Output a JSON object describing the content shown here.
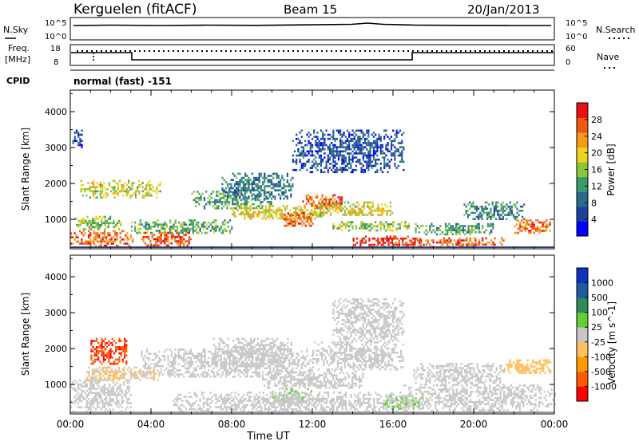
{
  "header": {
    "station": "Kerguelen (fitACF)",
    "beam": "Beam 15",
    "date": "20/Jan/2013"
  },
  "panels": {
    "nsky_label": "N.Sky",
    "nsky_ticks": [
      "10^5",
      "10^0"
    ],
    "nsearch_label": "N.Search",
    "nsearch_ticks": [
      "10^5",
      "10^0"
    ],
    "freq_label_1": "Freq.",
    "freq_label_2": "[MHz]",
    "freq_ticks": [
      "18",
      "8"
    ],
    "nave_label": "Nave",
    "nave_ticks": [
      "60",
      "0"
    ],
    "cpid_label": "CPID",
    "cpid_value": "normal (fast) -151"
  },
  "chart_data": [
    {
      "type": "heatmap",
      "title": "",
      "xlabel": "Time UT",
      "ylabel": "Slant Range [km]",
      "x_ticks": [
        "00:00",
        "04:00",
        "08:00",
        "12:00",
        "16:00",
        "20:00",
        "00:00"
      ],
      "y_ticks": [
        1000,
        2000,
        3000,
        4000
      ],
      "ylim": [
        180,
        4600
      ],
      "xlim_hours": [
        0,
        24
      ],
      "colorbar": {
        "label": "Power [dB]",
        "ticks": [
          "28",
          "24",
          "20",
          "16",
          "12",
          "8",
          "4"
        ],
        "range": [
          0,
          30
        ],
        "colors": [
          "#0000ff",
          "#1f3fa0",
          "#2b6b8a",
          "#3a9a6a",
          "#88c83a",
          "#f0d020",
          "#f59a1a",
          "#ef5a10",
          "#e81010"
        ]
      },
      "regions": [
        {
          "t": [
            0.0,
            3.2
          ],
          "r": [
            250,
            700
          ],
          "v": 24
        },
        {
          "t": [
            0.2,
            2.5
          ],
          "r": [
            700,
            1100
          ],
          "v": 15
        },
        {
          "t": [
            0.5,
            4.5
          ],
          "r": [
            1600,
            2100
          ],
          "v": 17
        },
        {
          "t": [
            3.0,
            8.0
          ],
          "r": [
            600,
            1000
          ],
          "v": 13
        },
        {
          "t": [
            3.5,
            6.0
          ],
          "r": [
            250,
            650
          ],
          "v": 26
        },
        {
          "t": [
            6.0,
            10.0
          ],
          "r": [
            1300,
            1800
          ],
          "v": 12
        },
        {
          "t": [
            7.5,
            11.0
          ],
          "r": [
            1600,
            2300
          ],
          "v": 9
        },
        {
          "t": [
            8.0,
            12.5
          ],
          "r": [
            1000,
            1400
          ],
          "v": 18
        },
        {
          "t": [
            10.5,
            12.0
          ],
          "r": [
            800,
            1200
          ],
          "v": 24
        },
        {
          "t": [
            11.5,
            13.5
          ],
          "r": [
            1300,
            1700
          ],
          "v": 25
        },
        {
          "t": [
            12.0,
            16.0
          ],
          "r": [
            1100,
            1500
          ],
          "v": 17
        },
        {
          "t": [
            11.0,
            16.5
          ],
          "r": [
            2300,
            3500
          ],
          "v": 6
        },
        {
          "t": [
            13.0,
            16.8
          ],
          "r": [
            700,
            950
          ],
          "v": 15
        },
        {
          "t": [
            14.0,
            17.5
          ],
          "r": [
            250,
            550
          ],
          "v": 28
        },
        {
          "t": [
            17.0,
            21.5
          ],
          "r": [
            250,
            500
          ],
          "v": 24
        },
        {
          "t": [
            17.0,
            21.0
          ],
          "r": [
            600,
            900
          ],
          "v": 12
        },
        {
          "t": [
            19.5,
            22.5
          ],
          "r": [
            1000,
            1500
          ],
          "v": 10
        },
        {
          "t": [
            22.0,
            23.8
          ],
          "r": [
            650,
            1000
          ],
          "v": 24
        },
        {
          "t": [
            0.1,
            0.6
          ],
          "r": [
            3000,
            3500
          ],
          "v": 5
        }
      ]
    },
    {
      "type": "heatmap",
      "title": "",
      "xlabel": "Time UT",
      "ylabel": "Slant Range [km]",
      "x_ticks": [
        "00:00",
        "04:00",
        "08:00",
        "12:00",
        "16:00",
        "20:00",
        "00:00"
      ],
      "y_ticks": [
        1000,
        2000,
        3000,
        4000
      ],
      "ylim": [
        180,
        4600
      ],
      "xlim_hours": [
        0,
        24
      ],
      "colorbar": {
        "label": "Velocity [m s^-1]",
        "ticks": [
          "1000",
          "500",
          "100",
          "25",
          "-25",
          "-100",
          "-500",
          "-1000"
        ],
        "range": [
          -1200,
          1200
        ],
        "colors": [
          "#ff0000",
          "#ff5a00",
          "#ff9a00",
          "#ffc060",
          "#c8c8c8",
          "#66cc33",
          "#2e8b57",
          "#1f5aa0",
          "#1030c0"
        ]
      },
      "regions": [
        {
          "t": [
            0.0,
            3.0
          ],
          "r": [
            250,
            1200
          ],
          "v": 0
        },
        {
          "t": [
            1.0,
            2.8
          ],
          "r": [
            1600,
            2300
          ],
          "v": -900
        },
        {
          "t": [
            0.8,
            4.5
          ],
          "r": [
            1100,
            1500
          ],
          "v": -150
        },
        {
          "t": [
            3.5,
            12.0
          ],
          "r": [
            1200,
            2000
          ],
          "v": 0
        },
        {
          "t": [
            7.0,
            11.0
          ],
          "r": [
            1600,
            2300
          ],
          "v": 5
        },
        {
          "t": [
            9.5,
            14.5
          ],
          "r": [
            900,
            1400
          ],
          "v": 0
        },
        {
          "t": [
            10.0,
            12.0
          ],
          "r": [
            500,
            900
          ],
          "v": 120
        },
        {
          "t": [
            12.0,
            16.5
          ],
          "r": [
            1400,
            2200
          ],
          "v": 0
        },
        {
          "t": [
            13.0,
            16.5
          ],
          "r": [
            2200,
            3400
          ],
          "v": 0
        },
        {
          "t": [
            5.0,
            17.0
          ],
          "r": [
            250,
            800
          ],
          "v": 0
        },
        {
          "t": [
            15.5,
            17.5
          ],
          "r": [
            300,
            700
          ],
          "v": 150
        },
        {
          "t": [
            16.5,
            24.0
          ],
          "r": [
            300,
            1000
          ],
          "v": 0
        },
        {
          "t": [
            17.0,
            21.5
          ],
          "r": [
            1000,
            1600
          ],
          "v": 0
        },
        {
          "t": [
            21.5,
            23.8
          ],
          "r": [
            1300,
            1700
          ],
          "v": -250
        }
      ]
    }
  ]
}
